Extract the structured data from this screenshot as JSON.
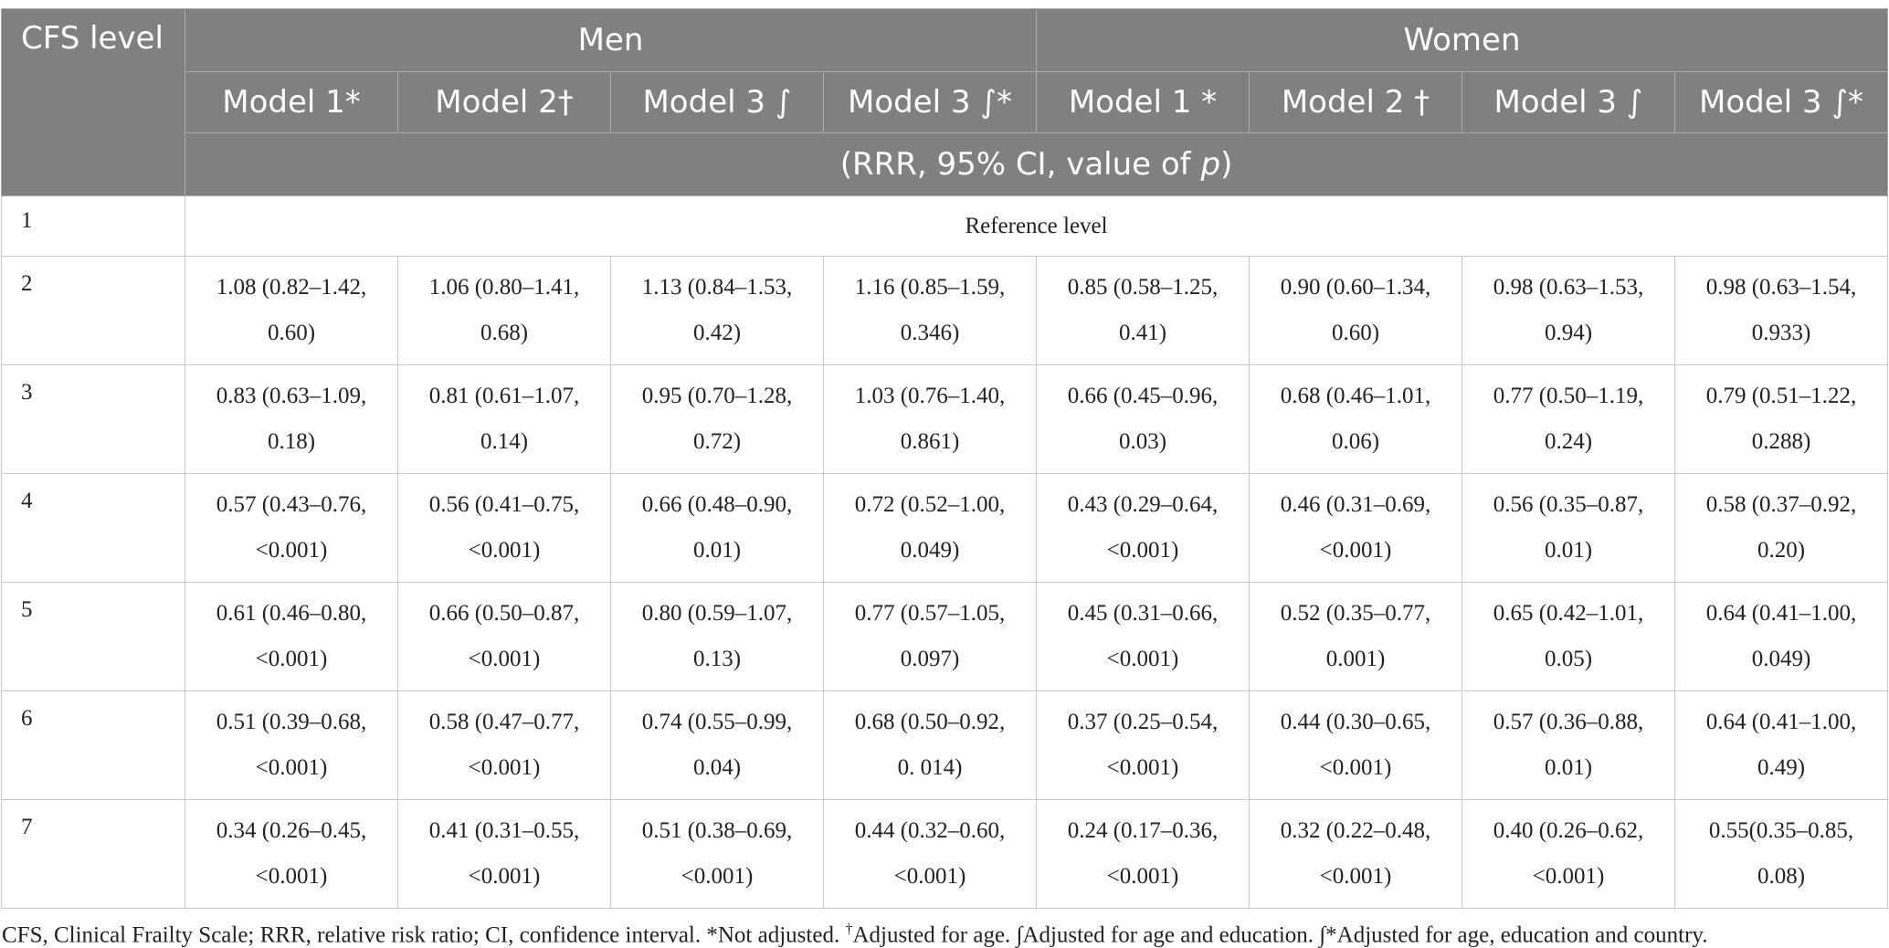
{
  "header": {
    "cfs_level": "CFS level",
    "groups": [
      "Men",
      "Women"
    ],
    "models": [
      "Model 1*",
      "Model 2†",
      "Model 3 ∫",
      "Model 3 ∫*",
      "Model 1 *",
      "Model 2 †",
      "Model 3 ∫",
      "Model 3 ∫*"
    ],
    "subheader_prefix": "(RRR, 95% CI, value of ",
    "subheader_p": "p",
    "subheader_suffix": ")"
  },
  "reference_row": {
    "level": "1",
    "text": "Reference level"
  },
  "rows": [
    {
      "level": "2",
      "cells": [
        [
          "1.08 (0.82–1.42,",
          "0.60)"
        ],
        [
          "1.06 (0.80–1.41,",
          "0.68)"
        ],
        [
          "1.13 (0.84–1.53,",
          "0.42)"
        ],
        [
          "1.16 (0.85–1.59,",
          "0.346)"
        ],
        [
          "0.85 (0.58–1.25,",
          "0.41)"
        ],
        [
          "0.90 (0.60–1.34,",
          "0.60)"
        ],
        [
          "0.98 (0.63–1.53,",
          "0.94)"
        ],
        [
          "0.98 (0.63–1.54,",
          "0.933)"
        ]
      ]
    },
    {
      "level": "3",
      "cells": [
        [
          "0.83 (0.63–1.09,",
          "0.18)"
        ],
        [
          "0.81 (0.61–1.07,",
          "0.14)"
        ],
        [
          "0.95 (0.70–1.28,",
          "0.72)"
        ],
        [
          "1.03 (0.76–1.40,",
          "0.861)"
        ],
        [
          "0.66 (0.45–0.96,",
          "0.03)"
        ],
        [
          "0.68 (0.46–1.01,",
          "0.06)"
        ],
        [
          "0.77 (0.50–1.19,",
          "0.24)"
        ],
        [
          "0.79 (0.51–1.22,",
          "0.288)"
        ]
      ]
    },
    {
      "level": "4",
      "cells": [
        [
          "0.57 (0.43–0.76,",
          "<0.001)"
        ],
        [
          "0.56 (0.41–0.75,",
          "<0.001)"
        ],
        [
          "0.66 (0.48–0.90,",
          "0.01)"
        ],
        [
          "0.72 (0.52–1.00,",
          "0.049)"
        ],
        [
          "0.43 (0.29–0.64,",
          "<0.001)"
        ],
        [
          "0.46 (0.31–0.69,",
          "<0.001)"
        ],
        [
          "0.56 (0.35–0.87,",
          "0.01)"
        ],
        [
          "0.58 (0.37–0.92,",
          "0.20)"
        ]
      ]
    },
    {
      "level": "5",
      "cells": [
        [
          "0.61 (0.46–0.80,",
          "<0.001)"
        ],
        [
          "0.66 (0.50–0.87,",
          "<0.001)"
        ],
        [
          "0.80 (0.59–1.07,",
          "0.13)"
        ],
        [
          "0.77 (0.57–1.05,",
          "0.097)"
        ],
        [
          "0.45 (0.31–0.66,",
          "<0.001)"
        ],
        [
          "0.52 (0.35–0.77,",
          "0.001)"
        ],
        [
          "0.65 (0.42–1.01,",
          "0.05)"
        ],
        [
          "0.64 (0.41–1.00,",
          "0.049)"
        ]
      ]
    },
    {
      "level": "6",
      "cells": [
        [
          "0.51 (0.39–0.68,",
          "<0.001)"
        ],
        [
          "0.58 (0.47–0.77,",
          "<0.001)"
        ],
        [
          "0.74 (0.55–0.99,",
          "0.04)"
        ],
        [
          "0.68 (0.50–0.92,",
          "0. 014)"
        ],
        [
          "0.37 (0.25–0.54,",
          "<0.001)"
        ],
        [
          "0.44 (0.30–0.65,",
          "<0.001)"
        ],
        [
          "0.57 (0.36–0.88,",
          "0.01)"
        ],
        [
          "0.64 (0.41–1.00,",
          "0.49)"
        ]
      ]
    },
    {
      "level": "7",
      "cells": [
        [
          "0.34 (0.26–0.45,",
          "<0.001)"
        ],
        [
          "0.41 (0.31–0.55,",
          "<0.001)"
        ],
        [
          "0.51 (0.38–0.69,",
          "<0.001)"
        ],
        [
          "0.44 (0.32–0.60,",
          "<0.001)"
        ],
        [
          "0.24 (0.17–0.36,",
          "<0.001)"
        ],
        [
          "0.32 (0.22–0.48,",
          "<0.001)"
        ],
        [
          "0.40 (0.26–0.62,",
          "<0.001)"
        ],
        [
          "0.55(0.35–0.85,",
          "0.08)"
        ]
      ]
    }
  ],
  "footnote": {
    "part1": "CFS, Clinical Frailty Scale; RRR, relative risk ratio; CI, confidence interval. *Not adjusted. ",
    "dagger": "†",
    "part2": "Adjusted for age. ∫Adjusted for age and education. ∫*Adjusted for age, education and country."
  }
}
